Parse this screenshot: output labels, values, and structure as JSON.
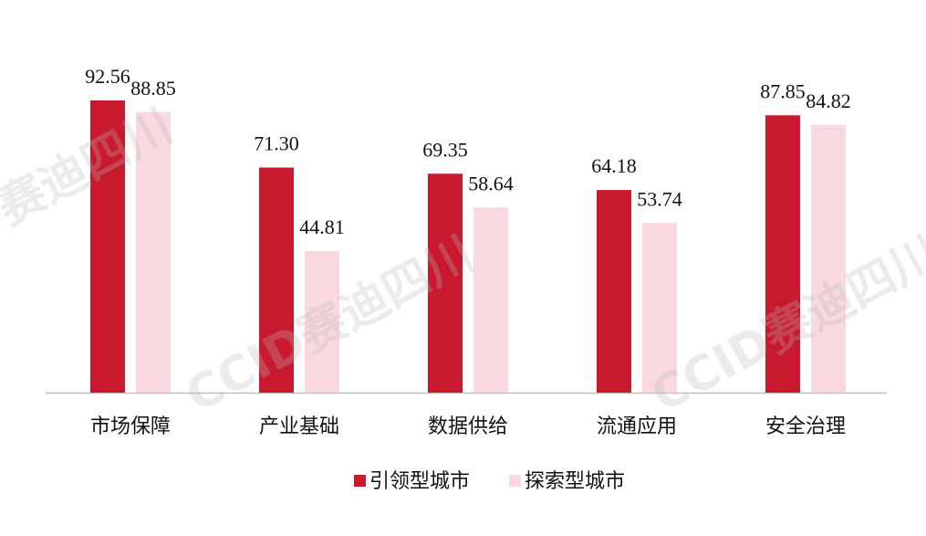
{
  "chart_data": {
    "type": "bar",
    "categories": [
      "市场保障",
      "产业基础",
      "数据供给",
      "流通应用",
      "安全治理"
    ],
    "series": [
      {
        "name": "引领型城市",
        "color": "#c8192f",
        "values": [
          92.56,
          71.3,
          69.35,
          64.18,
          87.85
        ],
        "value_labels": [
          "92.56",
          "71.30",
          "69.35",
          "64.18",
          "87.85"
        ]
      },
      {
        "name": "探索型城市",
        "color": "#f9d9df",
        "values": [
          88.85,
          44.81,
          58.64,
          53.74,
          84.82
        ],
        "value_labels": [
          "88.85",
          "44.81",
          "58.64",
          "53.74",
          "84.82"
        ]
      }
    ],
    "legend": "bottom",
    "watermark": "CCID赛迪四川"
  }
}
